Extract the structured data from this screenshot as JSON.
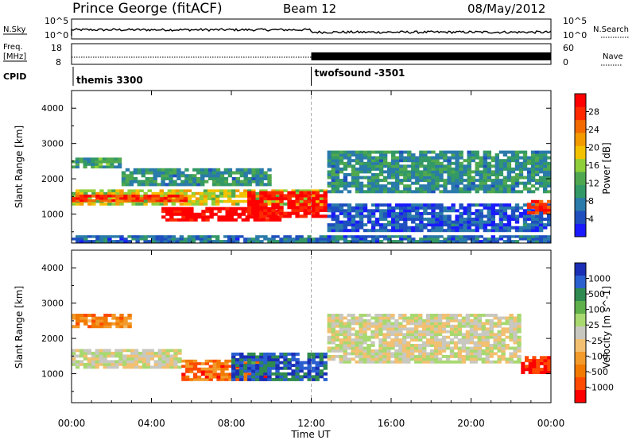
{
  "header": {
    "station": "Prince George (fitACF)",
    "beam": "Beam 12",
    "date": "08/May/2012"
  },
  "nsky_panel": {
    "left_label": "N.Sky",
    "right_label": "N.Search",
    "left_ticks": [
      "10^5",
      "10^0"
    ],
    "right_ticks": [
      "10^5",
      "10^0"
    ]
  },
  "freq_panel": {
    "left_label_1": "Freq.",
    "left_label_2": "[MHz]",
    "left_ticks": [
      "18",
      "8"
    ],
    "right_ticks": [
      "60",
      "0"
    ],
    "right_label": "Nave"
  },
  "cpid": {
    "label": "CPID",
    "modes": [
      {
        "name": "themis 3300",
        "start_hour": 0
      },
      {
        "name": "twofsound -3501",
        "start_hour": 12
      }
    ]
  },
  "chart_data": [
    {
      "type": "heatmap",
      "quantity": "Power",
      "ylabel": "Slant Range [km]",
      "ylim": [
        180,
        4500
      ],
      "yticks": [
        1000,
        2000,
        3000,
        4000
      ],
      "xlim_hours": [
        0,
        24
      ],
      "colorbar": {
        "label": "Power [dB]",
        "ticks": [
          "4",
          "8",
          "12",
          "16",
          "20",
          "24",
          "28"
        ],
        "colors": [
          "#1a1aff",
          "#1f4fbf",
          "#2a7aaa",
          "#339966",
          "#4fa84f",
          "#8fcf3a",
          "#f2c200",
          "#f29a00",
          "#f26a00",
          "#ff2a00",
          "#ff0000"
        ]
      },
      "regions": [
        {
          "t0": 0,
          "t1": 12.8,
          "r0": 1250,
          "r1": 1700,
          "level": 0.55
        },
        {
          "t0": 0,
          "t1": 6.0,
          "r0": 1350,
          "r1": 1550,
          "level": 0.85
        },
        {
          "t0": 4.5,
          "t1": 10.5,
          "r0": 800,
          "r1": 1200,
          "level": 1.0
        },
        {
          "t0": 8.8,
          "t1": 12.8,
          "r0": 900,
          "r1": 1650,
          "level": 0.95
        },
        {
          "t0": 0,
          "t1": 2.5,
          "r0": 2300,
          "r1": 2600,
          "level": 0.35
        },
        {
          "t0": 2.5,
          "t1": 10.0,
          "r0": 1800,
          "r1": 2300,
          "level": 0.3
        },
        {
          "t0": 0,
          "t1": 24,
          "r0": 200,
          "r1": 400,
          "level": 0.2
        },
        {
          "t0": 12.8,
          "t1": 24,
          "r0": 1600,
          "r1": 2800,
          "level": 0.3
        },
        {
          "t0": 12.8,
          "t1": 24,
          "r0": 500,
          "r1": 1300,
          "level": 0.15
        },
        {
          "t0": 22.8,
          "t1": 24,
          "r0": 1000,
          "r1": 1400,
          "level": 0.9
        }
      ]
    },
    {
      "type": "heatmap",
      "quantity": "Velocity",
      "ylabel": "Slant Range [km]",
      "ylim": [
        180,
        4500
      ],
      "yticks": [
        1000,
        2000,
        3000,
        4000
      ],
      "xlim_hours": [
        0,
        24
      ],
      "xticks": [
        "00:00",
        "04:00",
        "08:00",
        "12:00",
        "16:00",
        "20:00",
        "00:00"
      ],
      "xlabel": "Time UT",
      "colorbar": {
        "label": "Velocity [m s^-1]",
        "ticks": [
          "1000",
          "500",
          "100",
          "25",
          "-25",
          "-100",
          "-500",
          "-1000"
        ],
        "colors": [
          "#1a2fb5",
          "#2a5fcf",
          "#2f8a4f",
          "#5fb04a",
          "#a8d870",
          "#c8c8c0",
          "#f2c070",
          "#f29a2a",
          "#f27a00",
          "#ff4a00",
          "#ff0000"
        ]
      },
      "regions": [
        {
          "t0": 0,
          "t1": 5.5,
          "r0": 1150,
          "r1": 1700,
          "level": 0.5
        },
        {
          "t0": 5.5,
          "t1": 10.0,
          "r0": 800,
          "r1": 1400,
          "level": 0.8
        },
        {
          "t0": 8.0,
          "t1": 12.8,
          "r0": 800,
          "r1": 1600,
          "level": 0.15
        },
        {
          "t0": 0,
          "t1": 3.0,
          "r0": 2300,
          "r1": 2700,
          "level": 0.75
        },
        {
          "t0": 12.8,
          "t1": 22.5,
          "r0": 1300,
          "r1": 2700,
          "level": 0.5
        },
        {
          "t0": 22.5,
          "t1": 24,
          "r0": 1000,
          "r1": 1500,
          "level": 0.95
        }
      ]
    }
  ],
  "time_axis": {
    "ticks": [
      "00:00",
      "04:00",
      "08:00",
      "12:00",
      "16:00",
      "20:00",
      "00:00"
    ],
    "label": "Time UT"
  }
}
